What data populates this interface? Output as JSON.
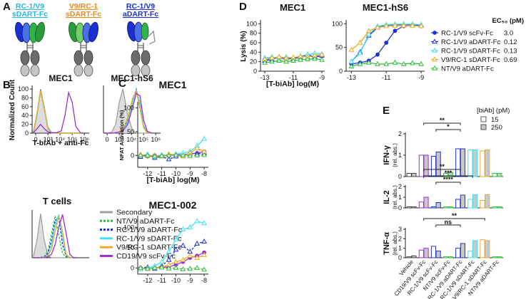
{
  "panel_labels": [
    "A",
    "B",
    "C",
    "D",
    "E"
  ],
  "constructs": [
    {
      "lines": [
        "RC-1/V9",
        "sDART-Fc"
      ],
      "color": "#29b6e8"
    },
    {
      "lines": [
        "V9/RC-1",
        "sDART-Fc"
      ],
      "color": "#e8891c"
    },
    {
      "lines": [
        "RC-1/V9",
        "aDART-Fc"
      ],
      "color": "#1c2fd1"
    }
  ],
  "chart_data": [
    {
      "type": "area",
      "title": "MEC1",
      "ylabel": "Normalized Count",
      "xlabel": "T-biAb + anti-Fc",
      "xlim": [
        1.7,
        6.4
      ],
      "ylim": [
        0,
        105
      ],
      "yticks": [
        0,
        20,
        40,
        60,
        80,
        100
      ],
      "xticks": [
        {
          "value": 2,
          "label": "0"
        },
        {
          "value": 3,
          "label": "10³"
        },
        {
          "value": 4,
          "label": "10⁴"
        },
        {
          "value": 5,
          "label": "10⁵"
        },
        {
          "value": 6,
          "label": "10⁶"
        }
      ],
      "x": [
        1.8,
        2.1,
        2.4,
        2.7,
        3.0,
        3.3,
        3.7,
        4.1,
        4.4,
        4.7,
        5.0,
        5.3,
        5.7
      ],
      "series": [
        {
          "color": "#a0a0a0",
          "fill": "#d9d9d9",
          "values": [
            2,
            40,
            100,
            60,
            10,
            0,
            0,
            0,
            0,
            0,
            0,
            0,
            0
          ]
        },
        {
          "color": "#2fbf3f",
          "dash": true,
          "values": [
            2,
            45,
            95,
            55,
            12,
            1,
            0,
            0,
            0,
            0,
            0,
            0,
            0
          ]
        },
        {
          "color": "#1f2fd6",
          "dash": true,
          "values": [
            2,
            42,
            98,
            58,
            12,
            1,
            0,
            0,
            0,
            0,
            0,
            0,
            0
          ]
        },
        {
          "color": "#3fe0f0",
          "values": [
            2,
            40,
            96,
            60,
            14,
            2,
            0,
            0,
            0,
            0,
            0,
            0,
            0
          ]
        },
        {
          "color": "#f5a623",
          "values": [
            2,
            44,
            97,
            57,
            11,
            1,
            0,
            0,
            0,
            0,
            0,
            0,
            0
          ]
        },
        {
          "color": "#9a2fd6",
          "values": [
            1,
            10,
            20,
            10,
            3,
            1,
            1,
            5,
            40,
            92,
            70,
            15,
            0
          ]
        }
      ]
    },
    {
      "type": "area",
      "title": "MEC1-hS6",
      "xlim": [
        1.7,
        6.4
      ],
      "ylim": [
        0,
        105
      ],
      "xticks": [
        {
          "value": 2,
          "label": "0"
        },
        {
          "value": 3,
          "label": "10³"
        },
        {
          "value": 4,
          "label": "10⁴"
        },
        {
          "value": 5,
          "label": "10⁵"
        },
        {
          "value": 6,
          "label": "10⁶"
        }
      ],
      "x": [
        1.8,
        2.1,
        2.4,
        2.7,
        3.0,
        3.3,
        3.7,
        4.1,
        4.4,
        4.7,
        5.0,
        5.3,
        5.7
      ],
      "series": [
        {
          "color": "#a0a0a0",
          "fill": "#d9d9d9",
          "values": [
            0,
            0,
            3,
            20,
            70,
            100,
            40,
            5,
            0,
            0,
            0,
            0,
            0
          ]
        },
        {
          "color": "#2fbf3f",
          "dash": true,
          "values": [
            0,
            0,
            0,
            1,
            3,
            10,
            35,
            80,
            95,
            55,
            12,
            1,
            0
          ]
        },
        {
          "color": "#1f2fd6",
          "dash": true,
          "values": [
            0,
            0,
            0,
            1,
            3,
            8,
            30,
            75,
            100,
            60,
            14,
            1,
            0
          ]
        },
        {
          "color": "#3fe0f0",
          "values": [
            0,
            0,
            0,
            1,
            2,
            6,
            25,
            70,
            98,
            68,
            18,
            2,
            0
          ]
        },
        {
          "color": "#f5a623",
          "values": [
            0,
            0,
            0,
            1,
            3,
            9,
            33,
            78,
            96,
            58,
            13,
            1,
            0
          ]
        },
        {
          "color": "#9a2fd6",
          "values": [
            0,
            0,
            0,
            1,
            2,
            5,
            20,
            60,
            90,
            85,
            30,
            4,
            0
          ]
        }
      ]
    },
    {
      "type": "area",
      "title": "T cells",
      "legend": "right",
      "xlim": [
        1.7,
        6.4
      ],
      "ylim": [
        0,
        105
      ],
      "x": [
        1.8,
        2.1,
        2.4,
        2.7,
        3.0,
        3.3,
        3.6,
        3.9,
        4.2,
        4.5,
        4.8,
        5.1,
        5.4
      ],
      "series": [
        {
          "name": "Secondary",
          "color": "#a0a0a0",
          "fill": "#d9d9d9",
          "values": [
            2,
            40,
            100,
            40,
            5,
            0,
            0,
            0,
            0,
            0,
            0,
            0,
            0
          ]
        },
        {
          "name": "NT/V9 aDART-Fc",
          "color": "#2fbf3f",
          "dash": true,
          "values": [
            0,
            0,
            1,
            3,
            15,
            55,
            95,
            50,
            10,
            1,
            0,
            0,
            0
          ]
        },
        {
          "name": "RC-1/V9 aDART-Fc",
          "color": "#1f2fd6",
          "dash": true,
          "values": [
            0,
            0,
            0,
            2,
            10,
            40,
            85,
            90,
            30,
            3,
            0,
            0,
            0
          ]
        },
        {
          "name": "RC-1/V9 sDART-Fc",
          "color": "#3fe0f0",
          "values": [
            0,
            0,
            0,
            1,
            6,
            30,
            75,
            98,
            45,
            5,
            0,
            0,
            0
          ]
        },
        {
          "name": "V9/RC-1 sDART-Fc",
          "color": "#f5a623",
          "values": [
            0,
            0,
            0,
            1,
            4,
            20,
            60,
            95,
            60,
            8,
            0,
            0,
            0
          ]
        },
        {
          "name": "CD19/V9 scFv-Fc",
          "color": "#9a2fd6",
          "values": [
            0,
            0,
            0,
            0,
            2,
            8,
            30,
            70,
            98,
            55,
            8,
            0,
            0
          ]
        }
      ]
    },
    {
      "type": "line",
      "title": "MEC1",
      "ylabel": "NFAT Activation (%)",
      "xlabel": "[T-biAb] log(M)",
      "xlim": [
        -12.7,
        -7.7
      ],
      "ylim": [
        -25,
        110
      ],
      "xticks": [
        -12,
        -11,
        -10,
        -9,
        -8
      ],
      "yticks": [
        0,
        50,
        100
      ],
      "x": [
        -12.5,
        -12,
        -11.5,
        -11,
        -10.5,
        -10,
        -9.5,
        -9,
        -8.5,
        -8
      ],
      "series": [
        {
          "color": "#9a2fd6",
          "marker": "circle",
          "values": [
            0,
            -2,
            0,
            -1,
            0,
            1,
            2,
            3,
            5,
            8
          ]
        },
        {
          "color": "#1f2fd6",
          "dash": true,
          "marker": "triangle-open",
          "values": [
            -3,
            2,
            -5,
            -2,
            -8,
            -2,
            0,
            5,
            3,
            5
          ]
        },
        {
          "color": "#3fe0f0",
          "marker": "triangle-open",
          "values": [
            0,
            2,
            -3,
            1,
            0,
            3,
            5,
            8,
            20,
            35
          ]
        },
        {
          "color": "#f5a623",
          "marker": "triangle-open",
          "values": [
            2,
            -1,
            0,
            -2,
            3,
            1,
            -2,
            5,
            15,
            8
          ]
        },
        {
          "color": "#2fbf3f",
          "dash": true,
          "marker": "triangle-open",
          "values": [
            0,
            0,
            -2,
            -1,
            0,
            1,
            0,
            -1,
            0,
            1
          ]
        }
      ]
    },
    {
      "type": "line",
      "title": "MEC1-002",
      "xlim": [
        -12.7,
        -7.7
      ],
      "ylim": [
        -15,
        125
      ],
      "xticks": [
        -12,
        -11,
        -10,
        -9,
        -8
      ],
      "yticks": [
        0,
        50,
        100
      ],
      "x": [
        -12.5,
        -12,
        -11.5,
        -11,
        -10.5,
        -10,
        -9.5,
        -9,
        -8.5,
        -8
      ],
      "series": [
        {
          "color": "#9a2fd6",
          "marker": "circle",
          "values": [
            0,
            -2,
            0,
            1,
            3,
            8,
            15,
            25,
            30,
            38
          ]
        },
        {
          "color": "#1f2fd6",
          "dash": true,
          "marker": "triangle-open",
          "values": [
            0,
            2,
            -2,
            5,
            20,
            45,
            55,
            40,
            60,
            65
          ]
        },
        {
          "color": "#3fe0f0",
          "marker": "triangle-open",
          "values": [
            -3,
            0,
            5,
            15,
            40,
            70,
            95,
            100,
            115,
            110
          ]
        },
        {
          "color": "#f5a623",
          "marker": "triangle-open",
          "values": [
            0,
            -2,
            0,
            2,
            8,
            15,
            20,
            30,
            25,
            32
          ]
        },
        {
          "color": "#2fbf3f",
          "dash": true,
          "marker": "triangle-open",
          "values": [
            0,
            -2,
            0,
            1,
            -1,
            0,
            -3,
            -2,
            0,
            -4
          ]
        }
      ]
    },
    {
      "type": "line",
      "title": "MEC1",
      "ylabel": "Lysis (%)",
      "xlabel": "[T-biAb] log(M)",
      "xlim": [
        -13.3,
        -8.8
      ],
      "ylim": [
        0,
        105
      ],
      "xticks": [
        -13,
        -11,
        -9
      ],
      "yticks": [
        0,
        20,
        40,
        60,
        80,
        100
      ],
      "x": [
        -13,
        -12.5,
        -12,
        -11.5,
        -11,
        -10.5,
        -10,
        -9.5,
        -9
      ],
      "series": [
        {
          "color": "#1f2fd6",
          "marker": "circle",
          "values": [
            25,
            27,
            28,
            26,
            27,
            30,
            32,
            30,
            32
          ]
        },
        {
          "color": "#1f2fd6",
          "marker": "triangle-open",
          "values": [
            22,
            25,
            30,
            28,
            26,
            30,
            35,
            30,
            33
          ]
        },
        {
          "color": "#3fe0f0",
          "marker": "triangle-open",
          "values": [
            28,
            30,
            27,
            30,
            28,
            32,
            35,
            38,
            36
          ]
        },
        {
          "color": "#f5a623",
          "marker": "triangle-open",
          "values": [
            25,
            28,
            30,
            27,
            29,
            31,
            30,
            33,
            35
          ]
        },
        {
          "color": "#2fbf3f",
          "marker": "triangle-open",
          "values": [
            18,
            20,
            22,
            20,
            22,
            24,
            25,
            26,
            24
          ]
        }
      ]
    },
    {
      "type": "line",
      "title": "MEC1-hS6",
      "legend": "right",
      "ec50_title": "EC₅₀ (pM)",
      "ec50": {
        "values": [
          3.0,
          0.12,
          0.13,
          0.69,
          null
        ],
        "value_labels": [
          "3.0",
          "0.12",
          "0.13",
          "0.69",
          null
        ]
      },
      "xlim": [
        -13.3,
        -8.8
      ],
      "ylim": [
        0,
        105
      ],
      "xticks": [
        -13,
        -11,
        -9
      ],
      "yticks": [
        0,
        50,
        100
      ],
      "x": [
        -13,
        -12.5,
        -12,
        -11.5,
        -11,
        -10.5,
        -10,
        -9.5,
        -9
      ],
      "series": [
        {
          "name": "RC-1/V9 scFv-Fc",
          "color": "#1f2fd6",
          "marker": "circle",
          "values": [
            15,
            18,
            22,
            35,
            60,
            85,
            95,
            97,
            95
          ]
        },
        {
          "name": "RC-1/V9 aDART-Fc",
          "color": "#1f2fd6",
          "marker": "triangle-open",
          "values": [
            20,
            40,
            75,
            92,
            97,
            98,
            98,
            98,
            97
          ]
        },
        {
          "name": "RC-1/V9 sDART-Fc",
          "color": "#3fe0f0",
          "marker": "triangle-open",
          "values": [
            20,
            38,
            78,
            95,
            98,
            99,
            99,
            99,
            98
          ]
        },
        {
          "name": "V9/RC-1 sDART-Fc",
          "color": "#f5a623",
          "marker": "triangle-open",
          "values": [
            45,
            60,
            85,
            92,
            95,
            96,
            96,
            96,
            95
          ]
        },
        {
          "name": "NT/V9 aDART-Fc",
          "color": "#2fbf3f",
          "marker": "triangle-open",
          "values": [
            10,
            15,
            18,
            15,
            15,
            18,
            15,
            17,
            15
          ]
        }
      ]
    },
    {
      "type": "bar",
      "ylabel": [
        "IFN-γ",
        "(rel. abs.)"
      ],
      "legend": "right",
      "legend_title": "[biAb] (pM)",
      "ylim": [
        0,
        2
      ],
      "yticks": [
        0,
        1,
        2
      ],
      "edge_colors": [
        "#444444",
        "#9a2fd6",
        "#1f2fd6",
        "#2fbf3f",
        "#1f2fd6",
        "#3fe0f0",
        "#f5a623",
        "#2fbf3f"
      ],
      "series": [
        {
          "name": "15",
          "color": "#ffffff",
          "values": [
            0.15,
            1.0,
            0.95,
            0.15,
            1.3,
            1.25,
            1.2,
            0.15
          ]
        },
        {
          "name": "250",
          "color": "#c8c8c8",
          "values": [
            0.15,
            1.0,
            1.15,
            0.2,
            1.3,
            1.25,
            1.25,
            0.15
          ]
        }
      ],
      "brackets": [
        {
          "label": "**",
          "from": 1,
          "to": 4
        },
        {
          "label": "*",
          "from": 2,
          "to": 4
        }
      ]
    },
    {
      "type": "bar",
      "ylabel": [
        "IL-2",
        "(rel. abs.)"
      ],
      "ylim": [
        0,
        2
      ],
      "yticks": [
        0,
        1,
        2
      ],
      "edge_colors": [
        "#444444",
        "#9a2fd6",
        "#1f2fd6",
        "#2fbf3f",
        "#1f2fd6",
        "#3fe0f0",
        "#f5a623",
        "#2fbf3f"
      ],
      "series": [
        {
          "color": "#ffffff",
          "values": [
            0.1,
            0.55,
            0.1,
            0.1,
            0.8,
            0.8,
            0.7,
            0.1
          ]
        },
        {
          "color": "#c8c8c8",
          "values": [
            0.1,
            1.0,
            0.5,
            0.1,
            1.2,
            1.25,
            1.25,
            0.1
          ]
        }
      ],
      "brackets": [
        {
          "label": "**",
          "from": 1,
          "to": 4
        },
        {
          "label": "***",
          "from": 1,
          "to": 5
        },
        {
          "label": "****",
          "from": 2,
          "to": 4
        }
      ]
    },
    {
      "type": "bar",
      "ylabel": [
        "TNF-α",
        "(rel. abs.)"
      ],
      "ylim": [
        0,
        3
      ],
      "yticks": [
        0,
        1,
        2,
        3
      ],
      "categories": [
        "Vehicle",
        "CD19/V9 scFv-Fc",
        "RC-1/V9 scFv-Fc",
        "NT/V9 scFv-Fc",
        "RC-1/V9 aDART-Fc",
        "RC-1/V9 sDART-Fc",
        "V9/RC-1 sDART-Fc",
        "NT/V9 aDART-Fc"
      ],
      "edge_colors": [
        "#444444",
        "#9a2fd6",
        "#1f2fd6",
        "#2fbf3f",
        "#1f2fd6",
        "#3fe0f0",
        "#f5a623",
        "#2fbf3f"
      ],
      "series": [
        {
          "color": "#ffffff",
          "values": [
            0.1,
            0.8,
            1.2,
            0.1,
            1.0,
            0.7,
            1.9,
            0.1
          ]
        },
        {
          "color": "#c8c8c8",
          "values": [
            0.2,
            1.0,
            0.7,
            0.1,
            1.5,
            1.8,
            1.8,
            0.1
          ]
        }
      ],
      "brackets": [
        {
          "label": "**",
          "from": 1,
          "to": 6
        },
        {
          "label": "ns",
          "from": 2,
          "to": 4
        }
      ]
    }
  ]
}
